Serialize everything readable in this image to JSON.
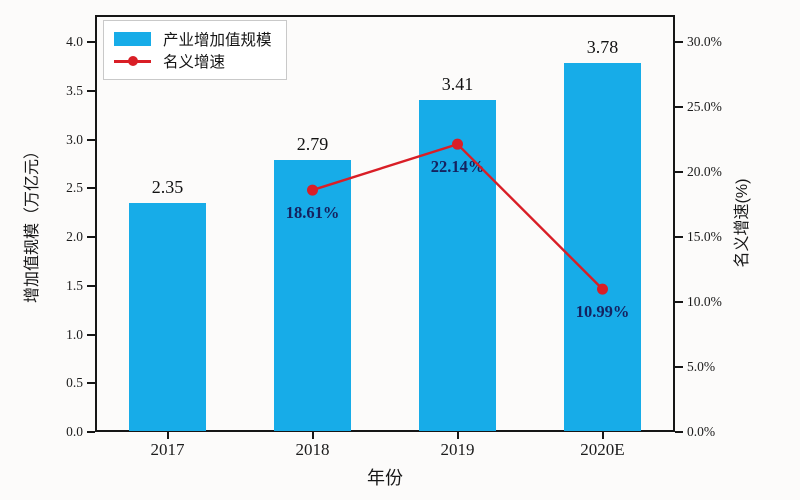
{
  "chart_data": {
    "type": "bar",
    "subtype": "combo-bar-line",
    "title": "",
    "categories": [
      "2017",
      "2018",
      "2019",
      "2020E"
    ],
    "series": [
      {
        "name": "产业增加值规模",
        "type": "bar",
        "axis": "left",
        "color": "#17ACE8",
        "values": [
          2.35,
          2.79,
          3.41,
          3.78
        ],
        "labels": [
          "2.35",
          "2.79",
          "3.41",
          "3.78"
        ]
      },
      {
        "name": "名义增速",
        "type": "line",
        "axis": "right",
        "color": "#D91E26",
        "values": [
          null,
          18.61,
          22.14,
          10.99
        ],
        "labels": [
          null,
          "18.61%",
          "22.14%",
          "10.99%"
        ]
      }
    ],
    "xlabel": "年份",
    "axes": {
      "left": {
        "label": "增加值规模（万亿元）",
        "min": 0,
        "max": 4.0,
        "tick_unit": 0.5,
        "ticks": [
          "0.0",
          "0.5",
          "1.0",
          "1.5",
          "2.0",
          "2.5",
          "3.0",
          "3.5",
          "4.0"
        ]
      },
      "right": {
        "label": "名义增速(%)",
        "min": 0,
        "max": 30,
        "tick_unit": 5,
        "ticks": [
          "0.0%",
          "5.0%",
          "10.0%",
          "15.0%",
          "20.0%",
          "25.0%",
          "30.0%"
        ]
      }
    },
    "legend": {
      "position": "upper left",
      "items": [
        "产业增加值规模",
        "名义增速"
      ]
    },
    "grid": false
  }
}
